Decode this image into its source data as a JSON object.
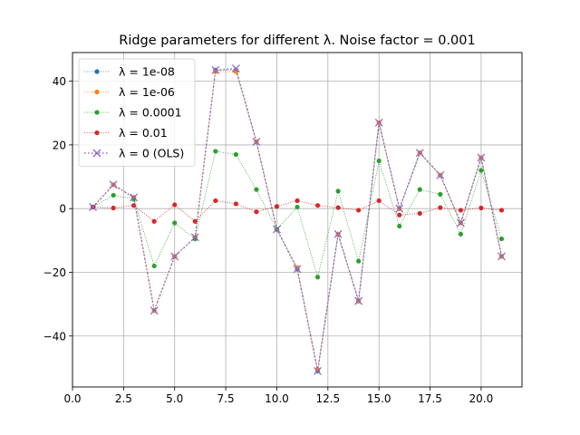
{
  "chart_data": {
    "type": "line",
    "title": "Ridge parameters for different λ. Noise factor = 0.001",
    "xlabel": "",
    "ylabel": "",
    "xlim": [
      0.0,
      22.0
    ],
    "ylim": [
      -56,
      49
    ],
    "xticks": [
      0.0,
      2.5,
      5.0,
      7.5,
      10.0,
      12.5,
      15.0,
      17.5,
      20.0
    ],
    "xtick_labels": [
      "0.0",
      "2.5",
      "5.0",
      "7.5",
      "10.0",
      "12.5",
      "15.0",
      "17.5",
      "20.0"
    ],
    "yticks": [
      -40,
      -20,
      0,
      20,
      40
    ],
    "ytick_labels": [
      "−40",
      "−20",
      "0",
      "20",
      "40"
    ],
    "grid": true,
    "legend_position": "top-left",
    "x": [
      1,
      2,
      3,
      4,
      5,
      6,
      7,
      8,
      9,
      10,
      11,
      12,
      13,
      14,
      15,
      16,
      17,
      18,
      19,
      20,
      21
    ],
    "series": [
      {
        "name": "λ = 1e-08",
        "color": "#1f77b4",
        "marker": "dot",
        "values": [
          0.5,
          7.5,
          3.5,
          -32,
          -15,
          -9,
          43.5,
          43.5,
          21,
          -6.5,
          -19,
          -51,
          -8,
          -29,
          27,
          0,
          17.5,
          10.5,
          -4.5,
          16,
          -15
        ]
      },
      {
        "name": "λ = 1e-06",
        "color": "#ff7f0e",
        "marker": "dot",
        "values": [
          0.5,
          7.5,
          3.5,
          -32,
          -15,
          -9,
          43,
          43,
          21,
          -6.5,
          -18.5,
          -50.5,
          -8,
          -29,
          27,
          0,
          17.5,
          10.5,
          -4.5,
          16,
          -15
        ]
      },
      {
        "name": "λ = 0.0001",
        "color": "#2ca02c",
        "marker": "dot",
        "values": [
          0.5,
          4.2,
          3,
          -18,
          -4.5,
          -9.5,
          18,
          17,
          6,
          -6.5,
          0.5,
          -21.5,
          5.5,
          -16.5,
          15,
          -5.5,
          6,
          4.5,
          -8,
          12,
          -9.5
        ]
      },
      {
        "name": "λ = 0.01",
        "color": "#d62728",
        "marker": "dot",
        "values": [
          0.5,
          0.2,
          1,
          -4,
          1.2,
          -4,
          2.5,
          1.5,
          -1,
          0.7,
          2.5,
          1,
          0.3,
          -0.5,
          2.5,
          -2,
          -1.5,
          0.3,
          -0.5,
          0.2,
          -0.5
        ]
      },
      {
        "name": "λ = 0 (OLS)",
        "color": "#9467bd",
        "marker": "x",
        "values": [
          0.5,
          7.5,
          3.5,
          -32,
          -15,
          -9,
          43.5,
          44,
          21,
          -6.5,
          -19,
          -51,
          -8,
          -29,
          27,
          0,
          17.5,
          10.5,
          -4.5,
          16,
          -15
        ]
      }
    ]
  }
}
